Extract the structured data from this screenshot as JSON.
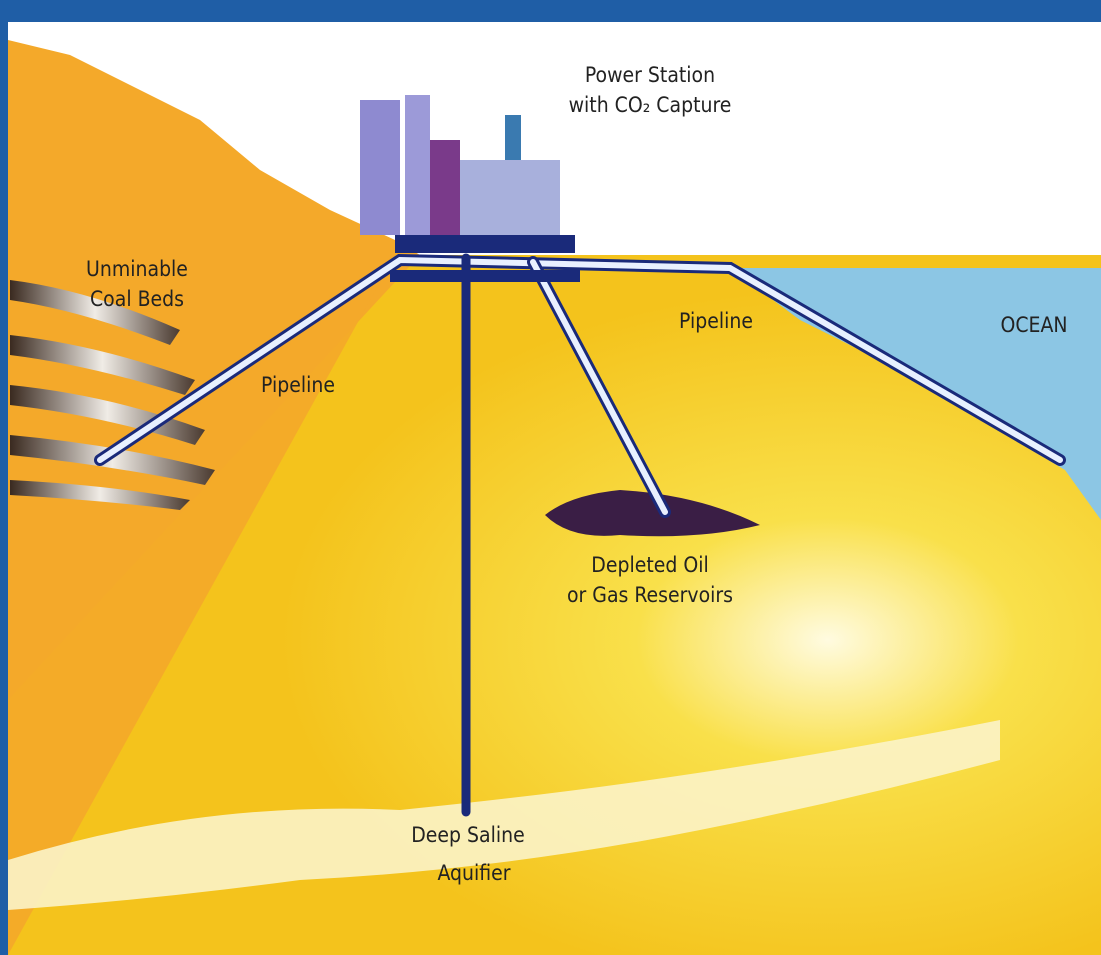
{
  "labels": [
    {
      "lines": [
        "Power Station",
        "with CO₂ Capture"
      ]
    },
    {
      "lines": [
        "Unminable",
        "Coal Beds"
      ]
    },
    {
      "lines": [
        "Pipeline"
      ]
    },
    {
      "lines": [
        "Pipeline"
      ]
    },
    {
      "lines": [
        "OCEAN"
      ]
    },
    {
      "lines": [
        "Depleted Oil",
        "or Gas Reservoirs"
      ]
    },
    {
      "lines": [
        "Deep Saline",
        "Aquifier"
      ]
    }
  ]
}
